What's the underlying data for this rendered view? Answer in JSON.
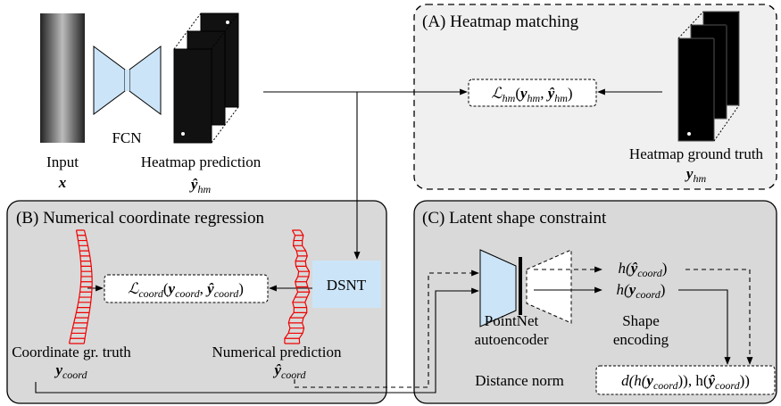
{
  "input": {
    "label": "Input",
    "symbol": "x"
  },
  "fcn": "FCN",
  "heatmap_prediction": {
    "label": "Heatmap prediction",
    "symbol": [
      "ŷ",
      "hm"
    ]
  },
  "panel_a": {
    "title": "(A) Heatmap matching",
    "loss": [
      "ℒ",
      "hm",
      "(",
      "y",
      "hm",
      ", ",
      "ŷ",
      "hm",
      ")"
    ],
    "ground_truth": {
      "label": "Heatmap ground truth",
      "symbol": [
        "y",
        "hm"
      ]
    }
  },
  "panel_b": {
    "title": "(B) Numerical coordinate regression",
    "dsnt": "DSNT",
    "loss": [
      "ℒ",
      "coord",
      "(",
      "y",
      "coord",
      ", ",
      "ŷ",
      "coord",
      ")"
    ],
    "ground_truth": {
      "label": "Coordinate gr. truth",
      "symbol": [
        "y",
        "coord"
      ]
    },
    "prediction": {
      "label": "Numerical prediction",
      "symbol": [
        "ŷ",
        "coord"
      ]
    }
  },
  "panel_c": {
    "title": "(C) Latent shape constraint",
    "model": [
      "PointNet",
      "autoencoder"
    ],
    "encoding_pred": [
      "h(",
      "ŷ",
      "coord",
      ")"
    ],
    "encoding_gt": [
      "h(",
      "y",
      "coord",
      ")"
    ],
    "encoding_label": [
      "Shape",
      "encoding"
    ],
    "distance_label": "Distance norm",
    "distance": [
      "d(h(",
      "y",
      "coord",
      ")), h(",
      "ŷ",
      "coord",
      "))"
    ]
  }
}
